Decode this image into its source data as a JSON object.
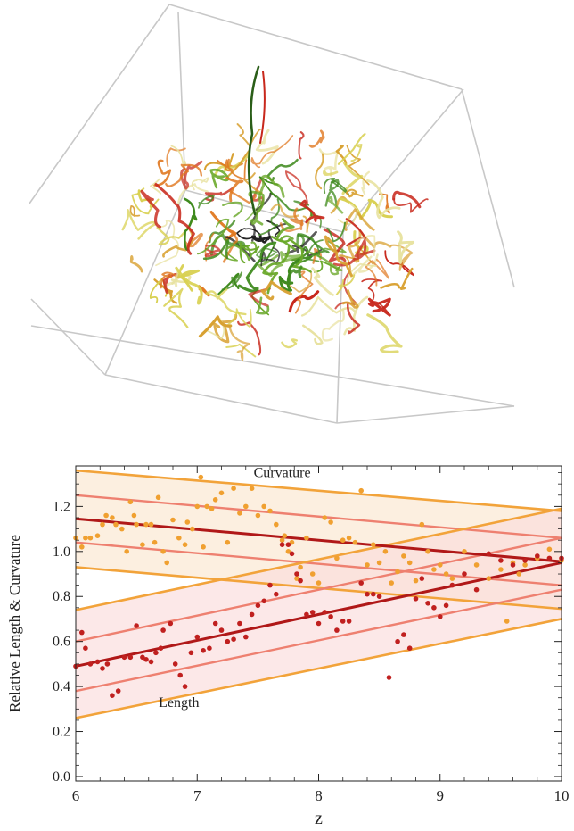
{
  "scene": {
    "description_colors": {
      "frame": "#c8c8c8",
      "dark": "#1a1a1a",
      "green": "#3f8a1e",
      "red": "#c8281c",
      "orange": "#e07820",
      "yellow": "#d8d050",
      "pale": "#e8e2a0"
    }
  },
  "chart_data": {
    "type": "scatter",
    "xlabel": "z",
    "ylabel": "Relative Length & Curvature",
    "xlim": [
      6,
      10
    ],
    "ylim": [
      -0.02,
      1.38
    ],
    "xticks": [
      6,
      7,
      8,
      9,
      10
    ],
    "yticks": [
      0.0,
      0.2,
      0.4,
      0.6,
      0.8,
      1.0,
      1.2
    ],
    "grid": false,
    "annotations": [
      {
        "text": "Curvature",
        "x": 7.7,
        "y": 1.33
      },
      {
        "text": "Length",
        "x": 6.85,
        "y": 0.31
      }
    ],
    "colors": {
      "length": "#c0201f",
      "curvature": "#f0a030",
      "band_outer": "#f2a33a",
      "band_inner": "#ee8070",
      "band_fill_curv": "#fbe6cf",
      "band_fill_len": "#fbdcdc"
    },
    "series": [
      {
        "name": "Curvature",
        "fit": {
          "x": [
            6,
            10
          ],
          "y": [
            1.145,
            0.955
          ]
        },
        "band_inner": {
          "upper": [
            1.25,
            1.06
          ],
          "lower": [
            1.04,
            0.85
          ]
        },
        "band_outer": {
          "upper": [
            1.36,
            1.18
          ],
          "lower": [
            0.93,
            0.745
          ]
        },
        "points": [
          [
            6.0,
            1.06
          ],
          [
            6.05,
            1.02
          ],
          [
            6.08,
            1.06
          ],
          [
            6.12,
            1.06
          ],
          [
            6.18,
            1.07
          ],
          [
            6.22,
            1.12
          ],
          [
            6.25,
            1.16
          ],
          [
            6.3,
            1.15
          ],
          [
            6.33,
            1.12
          ],
          [
            6.38,
            1.1
          ],
          [
            6.42,
            1.0
          ],
          [
            6.45,
            1.22
          ],
          [
            6.48,
            1.16
          ],
          [
            6.5,
            1.12
          ],
          [
            6.55,
            1.03
          ],
          [
            6.58,
            1.12
          ],
          [
            6.62,
            1.12
          ],
          [
            6.65,
            1.04
          ],
          [
            6.68,
            1.24
          ],
          [
            6.72,
            1.0
          ],
          [
            6.75,
            0.95
          ],
          [
            6.8,
            1.14
          ],
          [
            6.85,
            1.06
          ],
          [
            6.9,
            1.03
          ],
          [
            6.92,
            1.13
          ],
          [
            6.96,
            1.1
          ],
          [
            7.0,
            1.2
          ],
          [
            7.03,
            1.33
          ],
          [
            7.05,
            1.02
          ],
          [
            7.08,
            1.2
          ],
          [
            7.12,
            1.19
          ],
          [
            7.15,
            1.23
          ],
          [
            7.2,
            1.26
          ],
          [
            7.25,
            1.04
          ],
          [
            7.3,
            1.28
          ],
          [
            7.35,
            1.17
          ],
          [
            7.4,
            1.2
          ],
          [
            7.45,
            1.28
          ],
          [
            7.5,
            1.16
          ],
          [
            7.55,
            1.2
          ],
          [
            7.6,
            1.18
          ],
          [
            7.65,
            1.12
          ],
          [
            7.7,
            1.05
          ],
          [
            7.72,
            1.07
          ],
          [
            7.75,
            1.0
          ],
          [
            7.78,
            1.04
          ],
          [
            7.82,
            0.88
          ],
          [
            7.85,
            0.93
          ],
          [
            7.9,
            1.06
          ],
          [
            7.95,
            0.9
          ],
          [
            8.0,
            0.86
          ],
          [
            8.05,
            1.15
          ],
          [
            8.1,
            1.13
          ],
          [
            8.15,
            0.97
          ],
          [
            8.2,
            1.05
          ],
          [
            8.25,
            1.06
          ],
          [
            8.3,
            1.04
          ],
          [
            8.35,
            1.27
          ],
          [
            8.4,
            0.94
          ],
          [
            8.45,
            1.03
          ],
          [
            8.5,
            0.95
          ],
          [
            8.55,
            1.0
          ],
          [
            8.6,
            0.86
          ],
          [
            8.65,
            0.91
          ],
          [
            8.7,
            0.98
          ],
          [
            8.75,
            0.95
          ],
          [
            8.8,
            0.87
          ],
          [
            8.85,
            1.12
          ],
          [
            8.9,
            1.0
          ],
          [
            8.95,
            0.92
          ],
          [
            9.0,
            0.94
          ],
          [
            9.05,
            0.9
          ],
          [
            9.1,
            0.88
          ],
          [
            9.2,
            1.0
          ],
          [
            9.3,
            0.94
          ],
          [
            9.4,
            0.88
          ],
          [
            9.5,
            0.92
          ],
          [
            9.55,
            0.69
          ],
          [
            9.6,
            0.95
          ],
          [
            9.65,
            0.9
          ],
          [
            9.7,
            0.94
          ],
          [
            9.8,
            0.97
          ],
          [
            9.9,
            1.01
          ],
          [
            10.0,
            0.96
          ]
        ]
      },
      {
        "name": "Length",
        "fit": {
          "x": [
            6,
            10
          ],
          "y": [
            0.49,
            0.95
          ]
        },
        "band_inner": {
          "upper": [
            0.6,
            1.06
          ],
          "lower": [
            0.38,
            0.83
          ]
        },
        "band_outer": {
          "upper": [
            0.74,
            1.19
          ],
          "lower": [
            0.26,
            0.7
          ]
        },
        "points": [
          [
            6.0,
            0.49
          ],
          [
            6.05,
            0.64
          ],
          [
            6.08,
            0.57
          ],
          [
            6.12,
            0.5
          ],
          [
            6.18,
            0.51
          ],
          [
            6.22,
            0.48
          ],
          [
            6.26,
            0.5
          ],
          [
            6.3,
            0.36
          ],
          [
            6.35,
            0.38
          ],
          [
            6.4,
            0.53
          ],
          [
            6.45,
            0.53
          ],
          [
            6.5,
            0.67
          ],
          [
            6.55,
            0.53
          ],
          [
            6.58,
            0.52
          ],
          [
            6.62,
            0.51
          ],
          [
            6.66,
            0.55
          ],
          [
            6.7,
            0.57
          ],
          [
            6.72,
            0.65
          ],
          [
            6.78,
            0.68
          ],
          [
            6.82,
            0.5
          ],
          [
            6.86,
            0.45
          ],
          [
            6.9,
            0.4
          ],
          [
            6.95,
            0.55
          ],
          [
            7.0,
            0.62
          ],
          [
            7.05,
            0.56
          ],
          [
            7.1,
            0.57
          ],
          [
            7.15,
            0.68
          ],
          [
            7.2,
            0.65
          ],
          [
            7.25,
            0.6
          ],
          [
            7.3,
            0.61
          ],
          [
            7.35,
            0.68
          ],
          [
            7.4,
            0.62
          ],
          [
            7.45,
            0.72
          ],
          [
            7.5,
            0.76
          ],
          [
            7.55,
            0.78
          ],
          [
            7.6,
            0.85
          ],
          [
            7.65,
            0.81
          ],
          [
            7.7,
            1.03
          ],
          [
            7.75,
            1.03
          ],
          [
            7.78,
            0.99
          ],
          [
            7.82,
            0.9
          ],
          [
            7.85,
            0.87
          ],
          [
            7.9,
            0.72
          ],
          [
            7.95,
            0.73
          ],
          [
            8.0,
            0.68
          ],
          [
            8.05,
            0.73
          ],
          [
            8.1,
            0.71
          ],
          [
            8.15,
            0.65
          ],
          [
            8.2,
            0.69
          ],
          [
            8.25,
            0.69
          ],
          [
            8.35,
            0.86
          ],
          [
            8.4,
            0.81
          ],
          [
            8.45,
            0.81
          ],
          [
            8.5,
            0.8
          ],
          [
            8.58,
            0.44
          ],
          [
            8.65,
            0.6
          ],
          [
            8.7,
            0.63
          ],
          [
            8.75,
            0.57
          ],
          [
            8.8,
            0.79
          ],
          [
            8.85,
            0.88
          ],
          [
            8.9,
            0.77
          ],
          [
            8.95,
            0.75
          ],
          [
            9.0,
            0.71
          ],
          [
            9.05,
            0.76
          ],
          [
            9.1,
            0.85
          ],
          [
            9.2,
            0.9
          ],
          [
            9.3,
            0.83
          ],
          [
            9.4,
            0.99
          ],
          [
            9.5,
            0.96
          ],
          [
            9.6,
            0.94
          ],
          [
            9.7,
            0.96
          ],
          [
            9.8,
            0.98
          ],
          [
            9.9,
            0.97
          ],
          [
            10.0,
            0.97
          ]
        ]
      }
    ]
  }
}
